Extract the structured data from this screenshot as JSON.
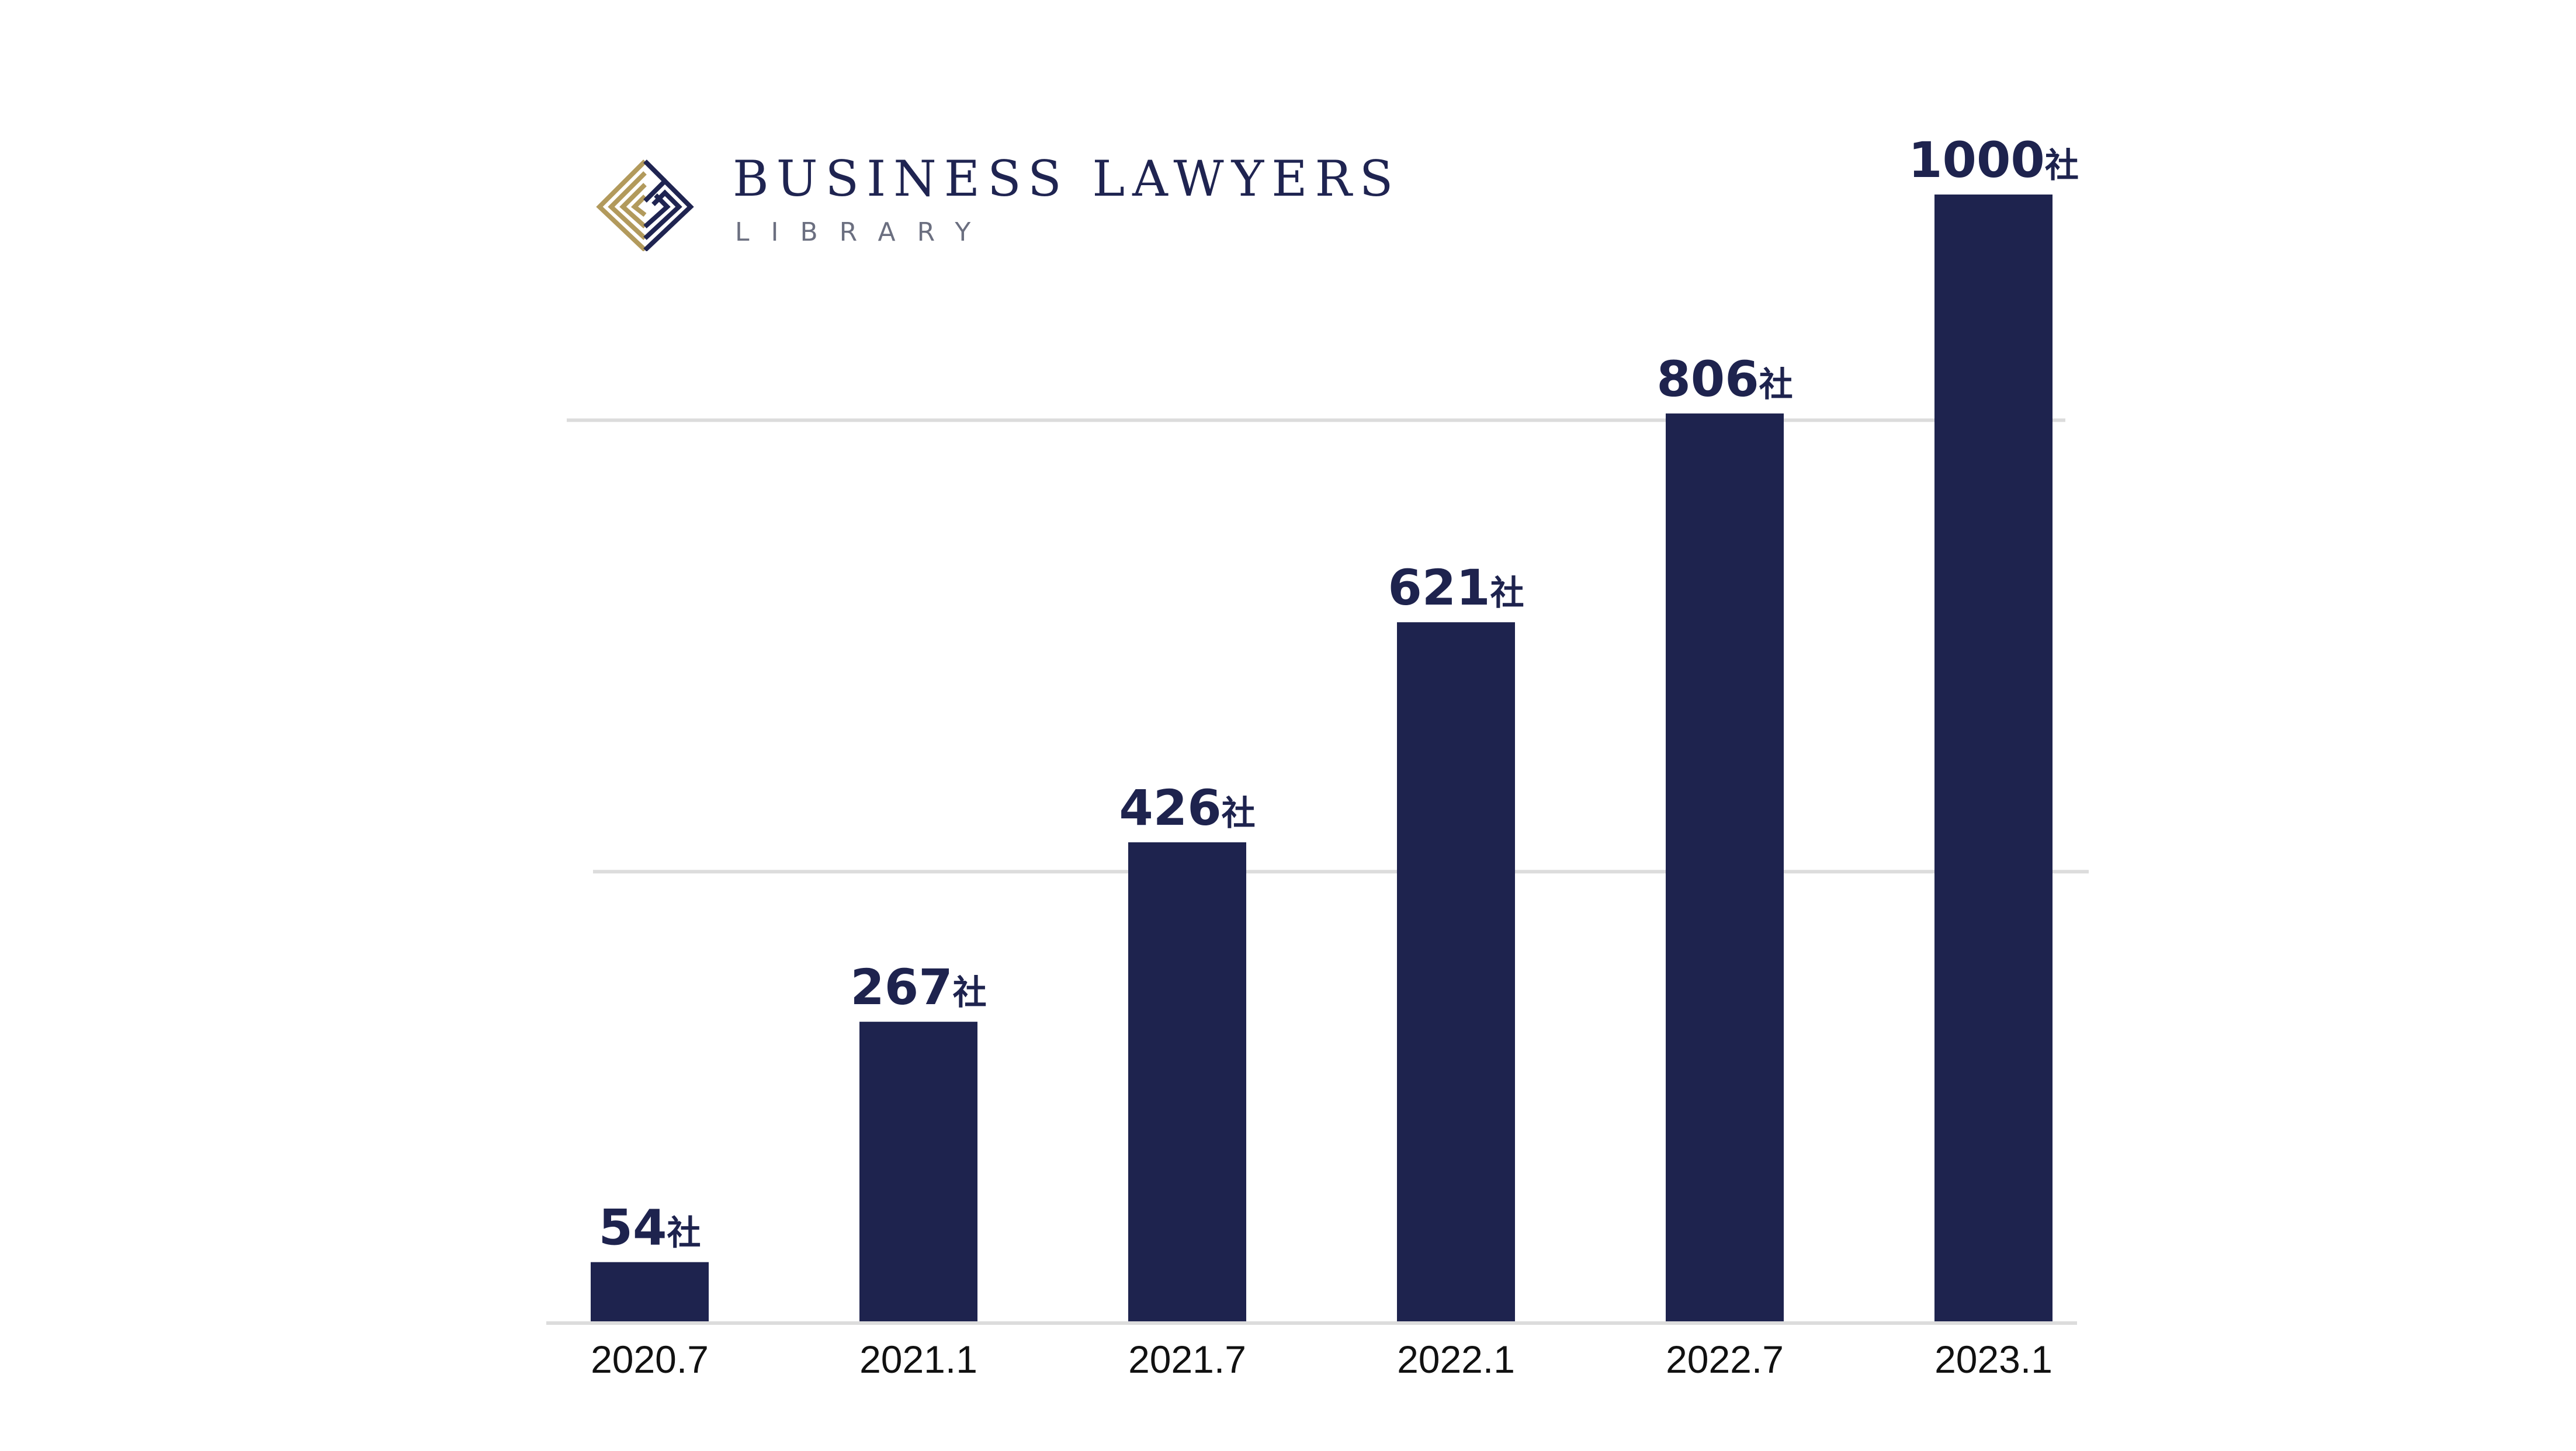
{
  "brand": {
    "name": "BUSINESS LAWYERS",
    "sub": "LIBRARY",
    "colors": {
      "navy": "#1f2451",
      "gold": "#b29a5c"
    }
  },
  "chart_data": {
    "type": "bar",
    "categories": [
      "2020.7",
      "2021.1",
      "2021.7",
      "2022.1",
      "2022.7",
      "2023.1"
    ],
    "values": [
      54,
      267,
      426,
      621,
      806,
      1000
    ],
    "value_unit": "社",
    "title": "",
    "xlabel": "",
    "ylabel": "",
    "ylim": [
      0,
      1000
    ],
    "grid": true,
    "gridlines": [
      400,
      800
    ],
    "bar_color": "#1e234e",
    "legend": "none"
  }
}
